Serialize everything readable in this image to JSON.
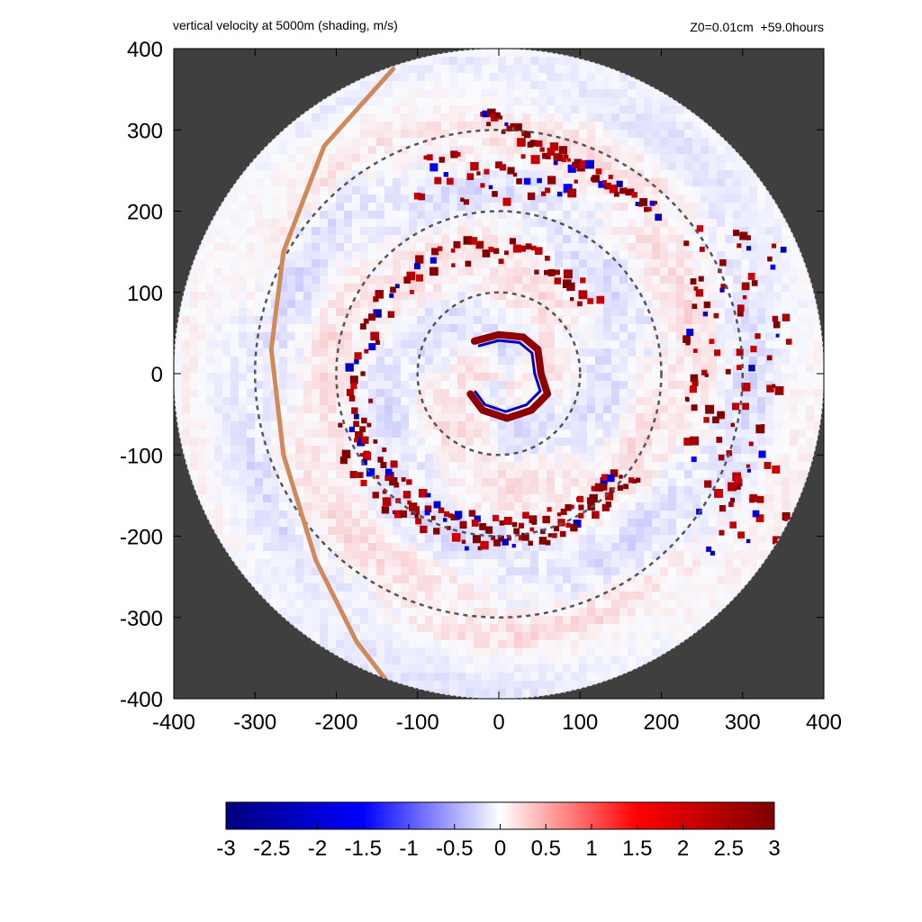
{
  "chart_data": {
    "type": "heatmap",
    "title": "vertical velocity at 5000m (shading, m/s)",
    "subtitle": "Z0=0.01cm  +59.0hours",
    "xlim": [
      -400,
      400
    ],
    "ylim": [
      -400,
      400
    ],
    "x_ticks": [
      "-400",
      "-300",
      "-200",
      "-100",
      "0",
      "100",
      "200",
      "300",
      "400"
    ],
    "y_ticks": [
      "400",
      "300",
      "200",
      "100",
      "0",
      "-100",
      "-200",
      "-300",
      "-400"
    ],
    "domain_radius": 400,
    "dashed_circle_radii": [
      100,
      200,
      300
    ],
    "colorbar": {
      "range": [
        -3,
        3
      ],
      "ticks": [
        "-3",
        "-2.5",
        "-2",
        "-1.5",
        "-1",
        "-0.5",
        "0",
        "0.5",
        "1",
        "1.5",
        "2",
        "2.5",
        "3"
      ],
      "colors": [
        "#00007f",
        "#0000ff",
        "#ffffff",
        "#ff0000",
        "#7f0000"
      ]
    },
    "background_color": "#3f3f3f",
    "track_color": "#d2895a",
    "features": {
      "eyewall_arc": [
        [
          -30,
          40
        ],
        [
          0,
          48
        ],
        [
          30,
          45
        ],
        [
          48,
          30
        ],
        [
          52,
          0
        ],
        [
          60,
          -25
        ],
        [
          40,
          -45
        ],
        [
          10,
          -55
        ],
        [
          -20,
          -45
        ],
        [
          -35,
          -25
        ]
      ],
      "track": [
        [
          -130,
          375
        ],
        [
          -215,
          280
        ],
        [
          -265,
          150
        ],
        [
          -280,
          30
        ],
        [
          -265,
          -100
        ],
        [
          -225,
          -230
        ],
        [
          -175,
          -330
        ],
        [
          -125,
          -395
        ]
      ]
    }
  }
}
